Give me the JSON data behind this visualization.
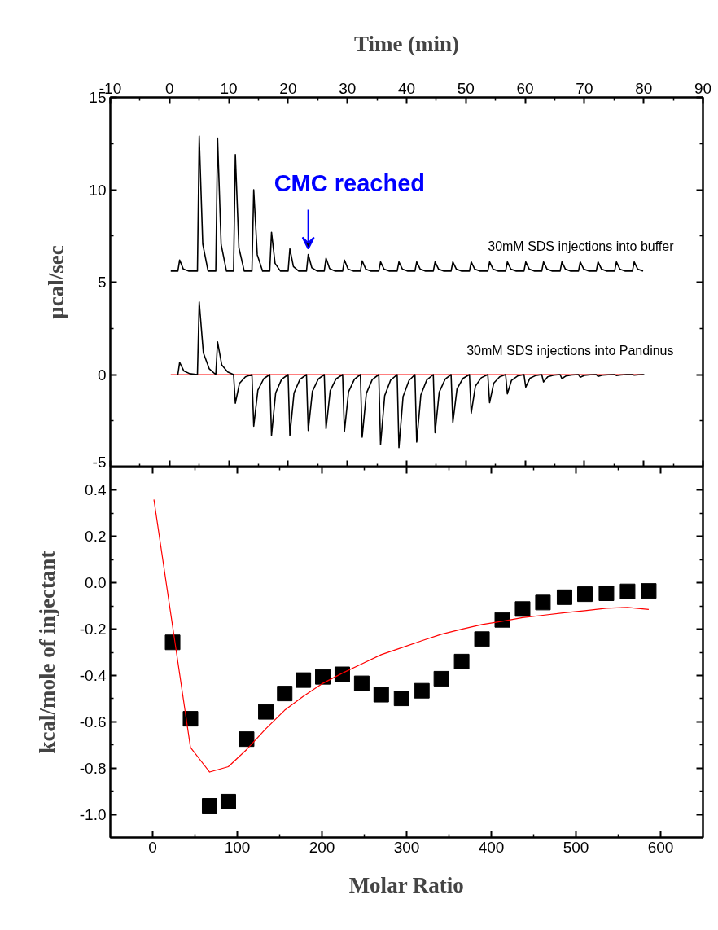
{
  "chart_data": [
    {
      "type": "line",
      "xlabel": "Time (min)",
      "ylabel": "µcal/sec",
      "xlim": [
        -10,
        90
      ],
      "xticks": [
        -10,
        0,
        10,
        20,
        30,
        40,
        50,
        60,
        70,
        80,
        90
      ],
      "ylim": [
        -5,
        15
      ],
      "yticks": [
        -5,
        0,
        5,
        10,
        15
      ],
      "grid": false,
      "line_style": "solid",
      "annotations": [
        {
          "text": "CMC reached",
          "x": 23.4,
          "y": 6.5
        }
      ],
      "series": [
        {
          "color": "#ff0000",
          "x": [
            0.2,
            79.9
          ],
          "values": [
            0,
            0
          ]
        },
        {
          "name": "30mM SDS injections into buffer",
          "color": "#000000",
          "x": [
            0.2,
            1.4,
            1.7,
            2.3,
            3.2,
            4.7,
            5.0,
            5.6,
            6.5,
            7.8,
            8.1,
            8.7,
            9.6,
            10.8,
            11.1,
            11.7,
            12.6,
            13.9,
            14.2,
            14.8,
            15.7,
            16.9,
            17.2,
            17.8,
            18.7,
            20.0,
            20.3,
            20.9,
            21.8,
            23.1,
            23.4,
            24.0,
            24.9,
            26.1,
            26.4,
            27.0,
            27.9,
            29.2,
            29.5,
            30.1,
            31.0,
            32.2,
            32.5,
            33.1,
            34.0,
            35.3,
            35.6,
            36.2,
            37.1,
            38.4,
            38.7,
            39.3,
            40.2,
            41.4,
            41.7,
            42.3,
            43.2,
            44.5,
            44.8,
            45.4,
            46.3,
            47.5,
            47.8,
            48.4,
            49.3,
            50.6,
            50.9,
            51.5,
            52.4,
            53.7,
            54.0,
            54.6,
            55.5,
            56.7,
            57.0,
            57.6,
            58.5,
            59.8,
            60.1,
            60.7,
            61.6,
            62.8,
            63.1,
            63.7,
            64.6,
            65.9,
            66.2,
            66.8,
            67.7,
            69.0,
            69.3,
            69.9,
            70.8,
            72.0,
            72.3,
            72.9,
            73.8,
            75.1,
            75.4,
            76.0,
            76.9,
            78.1,
            78.4,
            79.0,
            79.9
          ],
          "values": [
            5.6,
            5.6,
            6.2,
            5.72,
            5.6,
            5.6,
            12.9,
            7.06,
            5.6,
            5.6,
            12.8,
            7.04,
            5.6,
            5.6,
            11.9,
            6.86,
            5.6,
            5.6,
            10.0,
            6.48,
            5.6,
            5.6,
            7.7,
            6.02,
            5.6,
            5.6,
            6.8,
            5.84,
            5.6,
            5.6,
            6.5,
            5.78,
            5.6,
            5.6,
            6.3,
            5.74,
            5.6,
            5.6,
            6.2,
            5.72,
            5.6,
            5.6,
            6.15,
            5.71,
            5.6,
            5.6,
            6.1,
            5.7,
            5.6,
            5.6,
            6.1,
            5.7,
            5.6,
            5.6,
            6.1,
            5.7,
            5.6,
            5.6,
            6.1,
            5.7,
            5.6,
            5.6,
            6.1,
            5.7,
            5.6,
            5.6,
            6.1,
            5.7,
            5.6,
            5.6,
            6.1,
            5.7,
            5.6,
            5.6,
            6.1,
            5.7,
            5.6,
            5.6,
            6.1,
            5.7,
            5.6,
            5.6,
            6.1,
            5.7,
            5.6,
            5.6,
            6.1,
            5.7,
            5.6,
            5.6,
            6.1,
            5.7,
            5.6,
            5.6,
            6.1,
            5.7,
            5.6,
            5.6,
            6.1,
            5.7,
            5.6,
            5.6,
            6.1,
            5.7,
            5.6
          ]
        },
        {
          "name": "30mM SDS injections into Pandinus",
          "color": "#000000",
          "x": [
            1.4,
            1.7,
            2.4,
            3.4,
            4.7,
            5.0,
            5.7,
            6.7,
            7.8,
            8.1,
            8.8,
            9.8,
            10.8,
            11.1,
            11.8,
            12.8,
            13.9,
            14.2,
            14.9,
            15.9,
            16.9,
            17.2,
            17.9,
            18.9,
            20.0,
            20.3,
            21.0,
            22.0,
            23.1,
            23.4,
            24.1,
            25.1,
            26.1,
            26.4,
            27.1,
            28.1,
            29.2,
            29.5,
            30.2,
            31.2,
            32.2,
            32.5,
            33.2,
            34.2,
            35.3,
            35.6,
            36.3,
            37.3,
            38.4,
            38.7,
            39.4,
            40.4,
            41.4,
            41.7,
            42.4,
            43.4,
            44.5,
            44.8,
            45.5,
            46.5,
            47.5,
            47.8,
            48.5,
            49.5,
            50.6,
            50.9,
            51.6,
            52.6,
            53.7,
            54.0,
            54.7,
            55.7,
            56.7,
            57.0,
            57.7,
            58.7,
            59.8,
            60.1,
            60.8,
            61.8,
            62.8,
            63.1,
            63.8,
            64.8,
            65.9,
            66.2,
            66.9,
            67.9,
            69.0,
            69.3,
            70.0,
            71.0,
            72.0,
            72.3,
            73.0,
            74.0,
            75.1,
            75.4,
            76.1,
            77.1,
            78.1,
            78.4,
            79.1,
            80.1
          ],
          "values": [
            0,
            0.66,
            0.2,
            0.05,
            0,
            3.93,
            1.18,
            0.31,
            0,
            1.77,
            0.53,
            0.14,
            0,
            -1.55,
            -0.47,
            -0.12,
            0,
            -2.79,
            -0.84,
            -0.22,
            0,
            -3.29,
            -0.99,
            -0.26,
            0,
            -3.29,
            -0.99,
            -0.26,
            0,
            -3.03,
            -0.91,
            -0.24,
            0,
            -2.93,
            -0.88,
            -0.23,
            0,
            -3.09,
            -0.93,
            -0.25,
            0,
            -3.39,
            -1.02,
            -0.27,
            0,
            -3.79,
            -1.14,
            -0.3,
            0,
            -3.95,
            -1.19,
            -0.32,
            0,
            -3.65,
            -1.1,
            -0.29,
            0,
            -3.15,
            -0.95,
            -0.25,
            0,
            -2.59,
            -0.78,
            -0.21,
            0,
            -2.09,
            -0.63,
            -0.17,
            0,
            -1.52,
            -0.46,
            -0.12,
            0,
            -1.04,
            -0.31,
            -0.08,
            0,
            -0.68,
            -0.2,
            -0.05,
            0,
            -0.4,
            -0.12,
            -0.03,
            0,
            -0.22,
            -0.07,
            -0.02,
            0,
            -0.14,
            -0.04,
            -0.01,
            0,
            -0.1,
            -0.03,
            -0.01,
            0,
            -0.05,
            -0.02,
            0,
            0,
            -0.03,
            -0.01,
            0
          ]
        }
      ]
    },
    {
      "type": "scatter",
      "xlabel": "Molar Ratio",
      "ylabel": "kcal/mole of injectant",
      "xlim": [
        -50,
        650
      ],
      "xticks": [
        0,
        100,
        200,
        300,
        400,
        500,
        600
      ],
      "ylim": [
        -1.1,
        0.5
      ],
      "yticks": [
        {
          "value": -1.0,
          "label": "-1.0"
        },
        -0.8,
        -0.6,
        -0.4,
        -0.2,
        {
          "value": 0,
          "label": "0.0"
        },
        0.2,
        0.4
      ],
      "grid": false,
      "series": [
        {
          "marker": "square",
          "color": "#000000",
          "x": [
            23.6,
            44.7,
            67.3,
            89.4,
            111,
            133.7,
            156,
            178,
            201,
            224,
            247,
            270,
            294,
            318,
            341,
            365,
            389,
            413,
            437,
            461,
            486.5,
            510.6,
            536,
            561,
            586
          ],
          "values": [
            -0.257,
            -0.587,
            -0.963,
            -0.945,
            -0.675,
            -0.557,
            -0.478,
            -0.42,
            -0.406,
            -0.395,
            -0.434,
            -0.483,
            -0.499,
            -0.466,
            -0.414,
            -0.34,
            -0.243,
            -0.16,
            -0.113,
            -0.085,
            -0.062,
            -0.049,
            -0.045,
            -0.037,
            -0.035
          ]
        },
        {
          "type": "line",
          "color": "#ff0000",
          "x": [
            1.5,
            44.7,
            67.3,
            89.4,
            111,
            133.7,
            156,
            178,
            201,
            224,
            247,
            270,
            294,
            318,
            341,
            365,
            389,
            413,
            437,
            461,
            486.5,
            510.6,
            536,
            561,
            586
          ],
          "values": [
            0.36,
            -0.711,
            -0.817,
            -0.794,
            -0.72,
            -0.63,
            -0.55,
            -0.49,
            -0.434,
            -0.39,
            -0.35,
            -0.31,
            -0.28,
            -0.25,
            -0.222,
            -0.2,
            -0.18,
            -0.166,
            -0.15,
            -0.14,
            -0.129,
            -0.12,
            -0.11,
            -0.106,
            -0.115
          ]
        }
      ]
    }
  ]
}
